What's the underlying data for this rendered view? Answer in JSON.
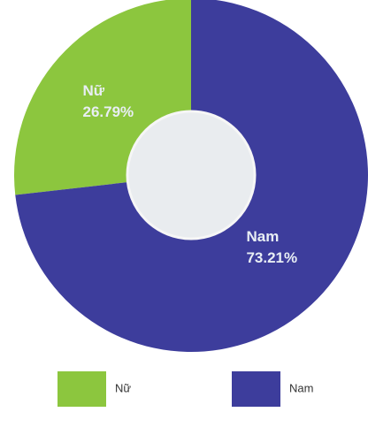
{
  "chart_data": {
    "type": "pie",
    "categories": [
      "Nữ",
      "Nam"
    ],
    "values": [
      26.79,
      73.21
    ],
    "value_labels": [
      "26.79%",
      "73.21%"
    ],
    "colors": [
      "#8cc63e",
      "#3d3d9c"
    ],
    "donut": true,
    "legend": "bottom"
  }
}
